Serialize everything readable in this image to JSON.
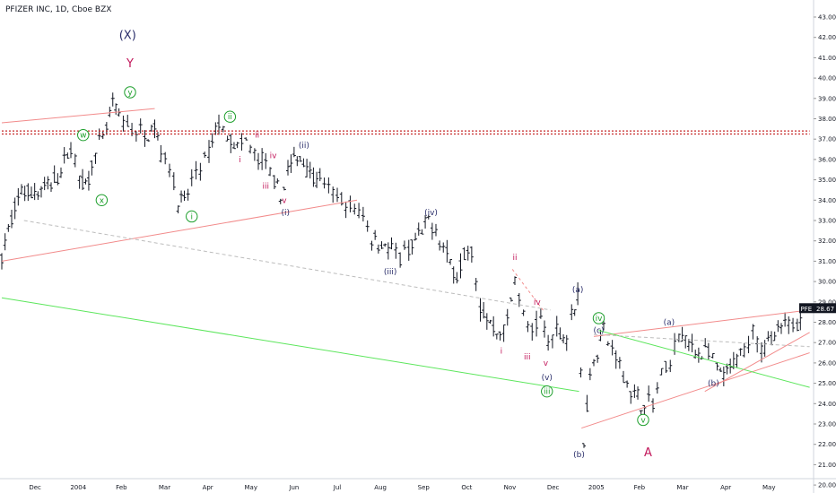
{
  "header": {
    "title": "PFIZER INC, 1D, Cboe BZX"
  },
  "colors": {
    "bars": "#131722",
    "red_line": "#c62828",
    "pink_line": "#f28b8b",
    "green_line": "#5ce65c",
    "dashed_line": "#bdbdbd",
    "wave_red": "#c2185b",
    "wave_navy": "#2a2e6a",
    "wave_green": "#1b9e2a"
  },
  "chart_data": {
    "type": "ohlc",
    "symbol": "PFE",
    "last_price": "28.67",
    "y_range": [
      19.5,
      43.5
    ],
    "y_ticks": [
      "20.00",
      "21.00",
      "22.00",
      "23.00",
      "24.00",
      "25.00",
      "26.00",
      "27.00",
      "28.00",
      "29.00",
      "30.00",
      "31.00",
      "32.00",
      "33.00",
      "34.00",
      "35.00",
      "36.00",
      "37.00",
      "38.00",
      "39.00",
      "40.00",
      "41.00",
      "42.00",
      "43.00"
    ],
    "x_ticks": [
      "Dec",
      "2004",
      "Feb",
      "Mar",
      "Apr",
      "May",
      "Jun",
      "Jul",
      "Aug",
      "Sep",
      "Oct",
      "Nov",
      "Dec",
      "2005",
      "Feb",
      "Mar",
      "Apr",
      "May"
    ],
    "close_path": [
      [
        0,
        31.3
      ],
      [
        0.8,
        33
      ],
      [
        1.6,
        34.5
      ],
      [
        2.4,
        34.3
      ],
      [
        3.2,
        34.6
      ],
      [
        4.0,
        34.8
      ],
      [
        4.8,
        35.3
      ],
      [
        5.6,
        36.7
      ],
      [
        6.3,
        35
      ],
      [
        6.8,
        34.6
      ],
      [
        7.3,
        35.8
      ],
      [
        7.9,
        36.7
      ],
      [
        8.5,
        37.5
      ],
      [
        9.0,
        38.8
      ],
      [
        9.5,
        38
      ],
      [
        10.2,
        37.7
      ],
      [
        10.9,
        37.4
      ],
      [
        11.6,
        37.2
      ],
      [
        12.4,
        37.8
      ],
      [
        12.9,
        36.3
      ],
      [
        13.6,
        35.8
      ],
      [
        14.3,
        34.0
      ],
      [
        14.8,
        33.8
      ],
      [
        15.4,
        34.9
      ],
      [
        16.1,
        35.6
      ],
      [
        16.8,
        36.2
      ],
      [
        17.6,
        37.9
      ],
      [
        18.3,
        37.0
      ],
      [
        19.1,
        36.5
      ],
      [
        19.8,
        36.8
      ],
      [
        20.5,
        36.2
      ],
      [
        21.4,
        35.8
      ],
      [
        22.1,
        34.7
      ],
      [
        22.6,
        34.2
      ],
      [
        23.2,
        35.4
      ],
      [
        23.7,
        35.9
      ],
      [
        24.2,
        36.2
      ],
      [
        25.0,
        35.4
      ],
      [
        25.8,
        35.0
      ],
      [
        26.5,
        34.4
      ],
      [
        27.2,
        34.2
      ],
      [
        27.9,
        33.7
      ],
      [
        28.6,
        33.5
      ],
      [
        29.3,
        33.3
      ],
      [
        30.0,
        32.2
      ],
      [
        30.8,
        31.9
      ],
      [
        31.6,
        31.5
      ],
      [
        32.3,
        31.2
      ],
      [
        33.0,
        31.5
      ],
      [
        33.8,
        32.2
      ],
      [
        34.6,
        32.9
      ],
      [
        35.2,
        32.5
      ],
      [
        36.1,
        31.2
      ],
      [
        36.9,
        30.4
      ],
      [
        37.5,
        31.2
      ],
      [
        38.1,
        31.4
      ],
      [
        38.8,
        28.6
      ],
      [
        39.6,
        28.0
      ],
      [
        40.4,
        27.4
      ],
      [
        41.0,
        28.0
      ],
      [
        41.6,
        30.4
      ],
      [
        42.3,
        28.2
      ],
      [
        43.0,
        27.4
      ],
      [
        43.7,
        28.1
      ],
      [
        44.3,
        27.1
      ],
      [
        45.0,
        27.6
      ],
      [
        45.8,
        27.3
      ],
      [
        46.2,
        28.5
      ],
      [
        46.7,
        29.2
      ],
      [
        47.2,
        22.2
      ],
      [
        47.7,
        25.5
      ],
      [
        48.3,
        26.6
      ],
      [
        48.8,
        27.6
      ],
      [
        49.5,
        26.7
      ],
      [
        50.4,
        25.4
      ],
      [
        51.3,
        24.4
      ],
      [
        52.1,
        24.0
      ],
      [
        52.8,
        24.0
      ],
      [
        53.5,
        25.4
      ],
      [
        54.2,
        26.0
      ],
      [
        54.9,
        27.4
      ],
      [
        55.7,
        26.9
      ],
      [
        56.5,
        26.5
      ],
      [
        57.3,
        26.5
      ],
      [
        58.0,
        25.6
      ],
      [
        58.8,
        25.4
      ],
      [
        59.6,
        26.2
      ],
      [
        60.2,
        26.5
      ],
      [
        60.9,
        27.8
      ],
      [
        61.6,
        26.8
      ],
      [
        62.4,
        27.0
      ],
      [
        63.2,
        27.6
      ],
      [
        63.8,
        27.9
      ],
      [
        64.5,
        28.1
      ],
      [
        65.0,
        28.7
      ]
    ],
    "wave_labels": [
      {
        "text": "(X)",
        "color": "navy",
        "size": "big",
        "x": 10.2,
        "y": 42.1
      },
      {
        "text": "Y",
        "color": "red",
        "size": "big",
        "x": 10.4,
        "y": 40.7
      },
      {
        "text": "y",
        "color": "green",
        "circled": true,
        "x": 10.4,
        "y": 39.3
      },
      {
        "text": "w",
        "color": "green",
        "circled": true,
        "x": 6.6,
        "y": 37.2
      },
      {
        "text": "x",
        "color": "green",
        "circled": true,
        "x": 8.1,
        "y": 34.0
      },
      {
        "text": "ii",
        "color": "green",
        "circled": true,
        "x": 18.5,
        "y": 38.1
      },
      {
        "text": "i",
        "color": "green",
        "circled": true,
        "x": 15.4,
        "y": 33.2
      },
      {
        "text": "ii",
        "color": "red",
        "x": 20.7,
        "y": 37.2
      },
      {
        "text": "i",
        "color": "red",
        "x": 19.3,
        "y": 36.0
      },
      {
        "text": "iv",
        "color": "red",
        "x": 22.0,
        "y": 36.2
      },
      {
        "text": "iii",
        "color": "red",
        "x": 21.4,
        "y": 34.7
      },
      {
        "text": "v",
        "color": "red",
        "x": 22.9,
        "y": 34.0
      },
      {
        "text": "(i)",
        "color": "navy",
        "x": 23.0,
        "y": 33.4
      },
      {
        "text": "(ii)",
        "color": "navy",
        "x": 24.5,
        "y": 36.7
      },
      {
        "text": "(iii)",
        "color": "navy",
        "x": 31.5,
        "y": 30.5
      },
      {
        "text": "(iv)",
        "color": "navy",
        "x": 34.8,
        "y": 33.4
      },
      {
        "text": "ii",
        "color": "red",
        "x": 41.6,
        "y": 31.2
      },
      {
        "text": "iv",
        "color": "red",
        "x": 43.4,
        "y": 29.0
      },
      {
        "text": "i",
        "color": "red",
        "x": 40.5,
        "y": 26.6
      },
      {
        "text": "iii",
        "color": "red",
        "x": 42.6,
        "y": 26.3
      },
      {
        "text": "v",
        "color": "red",
        "x": 44.1,
        "y": 26.0
      },
      {
        "text": "(v)",
        "color": "navy",
        "x": 44.2,
        "y": 25.3
      },
      {
        "text": "iii",
        "color": "green",
        "circled": true,
        "x": 44.2,
        "y": 24.6
      },
      {
        "text": "(a)",
        "color": "navy",
        "x": 46.7,
        "y": 29.6
      },
      {
        "text": "iv",
        "color": "green",
        "circled": true,
        "x": 48.4,
        "y": 28.2
      },
      {
        "text": "(c)",
        "color": "navy",
        "x": 48.4,
        "y": 27.6
      },
      {
        "text": "(b)",
        "color": "navy",
        "x": 46.8,
        "y": 21.5
      },
      {
        "text": "v",
        "color": "green",
        "circled": true,
        "x": 52.0,
        "y": 23.2
      },
      {
        "text": "A",
        "color": "red",
        "size": "big",
        "x": 52.4,
        "y": 21.6
      },
      {
        "text": "(a)",
        "color": "navy",
        "x": 54.1,
        "y": 28.0
      },
      {
        "text": "(b)",
        "color": "navy",
        "x": 57.7,
        "y": 25.0
      }
    ],
    "lines": [
      {
        "kind": "pink",
        "from": [
          0,
          37.8
        ],
        "to": [
          12.4,
          38.5
        ]
      },
      {
        "kind": "red_dotted",
        "from": [
          0,
          37.25
        ],
        "to": [
          65.5,
          37.25
        ]
      },
      {
        "kind": "red_dotted",
        "from": [
          0,
          37.4
        ],
        "to": [
          65.5,
          37.4
        ]
      },
      {
        "kind": "pink",
        "from": [
          0,
          31.0
        ],
        "to": [
          28.8,
          34.0
        ]
      },
      {
        "kind": "dashed",
        "from": [
          1.8,
          33.0
        ],
        "to": [
          44.5,
          28.6
        ]
      },
      {
        "kind": "pink_dash",
        "from": [
          41.4,
          30.6
        ],
        "to": [
          44.0,
          28.5
        ]
      },
      {
        "kind": "green",
        "from": [
          0,
          29.2
        ],
        "to": [
          46.8,
          24.6
        ]
      },
      {
        "kind": "pink",
        "from": [
          47.0,
          22.8
        ],
        "to": [
          65.5,
          26.5
        ]
      },
      {
        "kind": "pink",
        "from": [
          48.0,
          27.3
        ],
        "to": [
          65.5,
          28.6
        ]
      },
      {
        "kind": "green",
        "from": [
          48.4,
          27.6
        ],
        "to": [
          65.5,
          24.8
        ]
      },
      {
        "kind": "dashed",
        "from": [
          48.0,
          27.4
        ],
        "to": [
          65.5,
          26.8
        ]
      },
      {
        "kind": "pink",
        "from": [
          57.0,
          24.6
        ],
        "to": [
          65.5,
          27.5
        ]
      }
    ]
  }
}
